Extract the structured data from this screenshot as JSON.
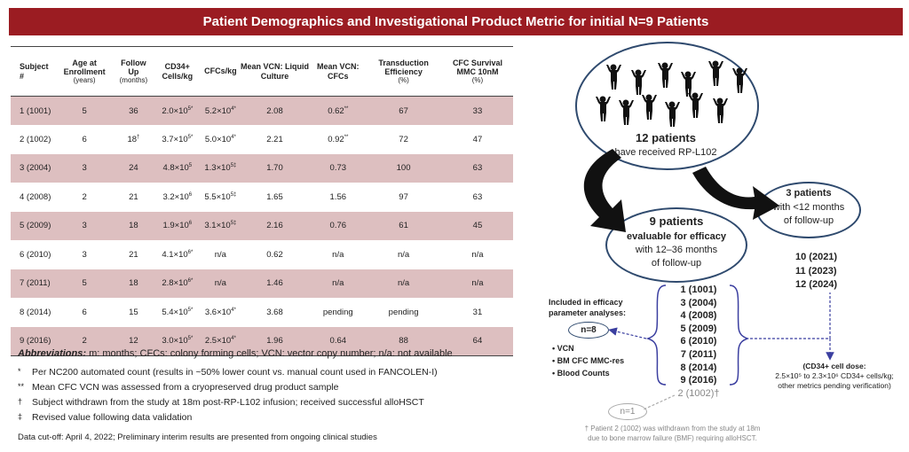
{
  "title": "Patient Demographics and Investigational Product Metric for initial N=9 Patients",
  "table": {
    "headers": [
      {
        "main": "Subject #",
        "sub": ""
      },
      {
        "main": "Age at Enrollment",
        "sub": "(years)"
      },
      {
        "main": "Follow Up",
        "sub": "(months)"
      },
      {
        "main": "CD34+ Cells/kg",
        "sub": ""
      },
      {
        "main": "CFCs/kg",
        "sub": ""
      },
      {
        "main": "Mean VCN: Liquid Culture",
        "sub": ""
      },
      {
        "main": "Mean VCN: CFCs",
        "sub": ""
      },
      {
        "main": "Transduction Efficiency",
        "sub": "(%)"
      },
      {
        "main": "CFC Survival MMC 10nM",
        "sub": "(%)"
      }
    ],
    "rows": [
      {
        "subject": "1 (1001)",
        "age": "5",
        "follow": "36",
        "follow_mark": "",
        "cd34_base": "2.0×10",
        "cd34_exp": "5*",
        "cfc_base": "5.2×10",
        "cfc_exp": "4*",
        "vcn_lc": "2.08",
        "vcn_cfc": "0.62",
        "vcn_cfc_mark": "**",
        "te": "67",
        "survival": "33"
      },
      {
        "subject": "2 (1002)",
        "age": "6",
        "follow": "18",
        "follow_mark": "†",
        "cd34_base": "3.7×10",
        "cd34_exp": "5*",
        "cfc_base": "5.0×10",
        "cfc_exp": "4*",
        "vcn_lc": "2.21",
        "vcn_cfc": "0.92",
        "vcn_cfc_mark": "**",
        "te": "72",
        "survival": "47"
      },
      {
        "subject": "3 (2004)",
        "age": "3",
        "follow": "24",
        "follow_mark": "",
        "cd34_base": "4.8×10",
        "cd34_exp": "5",
        "cfc_base": "1.3×10",
        "cfc_exp": "5‡",
        "vcn_lc": "1.70",
        "vcn_cfc": "0.73",
        "vcn_cfc_mark": "",
        "te": "100",
        "survival": "63"
      },
      {
        "subject": "4 (2008)",
        "age": "2",
        "follow": "21",
        "follow_mark": "",
        "cd34_base": "3.2×10",
        "cd34_exp": "6",
        "cfc_base": "5.5×10",
        "cfc_exp": "5‡",
        "vcn_lc": "1.65",
        "vcn_cfc": "1.56",
        "vcn_cfc_mark": "",
        "te": "97",
        "survival": "63"
      },
      {
        "subject": "5 (2009)",
        "age": "3",
        "follow": "18",
        "follow_mark": "",
        "cd34_base": "1.9×10",
        "cd34_exp": "6",
        "cfc_base": "3.1×10",
        "cfc_exp": "5‡",
        "vcn_lc": "2.16",
        "vcn_cfc": "0.76",
        "vcn_cfc_mark": "",
        "te": "61",
        "survival": "45"
      },
      {
        "subject": "6 (2010)",
        "age": "3",
        "follow": "21",
        "follow_mark": "",
        "cd34_base": "4.1×10",
        "cd34_exp": "6*",
        "cfc_base": "n/a",
        "cfc_exp": "",
        "vcn_lc": "0.62",
        "vcn_cfc": "n/a",
        "vcn_cfc_mark": "",
        "te": "n/a",
        "survival": "n/a"
      },
      {
        "subject": "7 (2011)",
        "age": "5",
        "follow": "18",
        "follow_mark": "",
        "cd34_base": "2.8×10",
        "cd34_exp": "6*",
        "cfc_base": "n/a",
        "cfc_exp": "",
        "vcn_lc": "1.46",
        "vcn_cfc": "n/a",
        "vcn_cfc_mark": "",
        "te": "n/a",
        "survival": "n/a"
      },
      {
        "subject": "8 (2014)",
        "age": "6",
        "follow": "15",
        "follow_mark": "",
        "cd34_base": "5.4×10",
        "cd34_exp": "5*",
        "cfc_base": "3.6×10",
        "cfc_exp": "4*",
        "vcn_lc": "3.68",
        "vcn_cfc": "pending",
        "vcn_cfc_mark": "",
        "te": "pending",
        "survival": "31"
      },
      {
        "subject": "9 (2016)",
        "age": "2",
        "follow": "12",
        "follow_mark": "",
        "cd34_base": "3.0×10",
        "cd34_exp": "5*",
        "cfc_base": "2.5×10",
        "cfc_exp": "4*",
        "vcn_lc": "1.96",
        "vcn_cfc": "0.64",
        "vcn_cfc_mark": "",
        "te": "88",
        "survival": "64"
      }
    ]
  },
  "abbreviations": {
    "label": "Abbreviations:",
    "text": " m: months; CFCs: colony forming cells; VCN: vector copy number; n/a: not available"
  },
  "footnotes": [
    {
      "mark": "*",
      "text": "Per NC200 automated count (results in ~50% lower count vs. manual count used in FANCOLEN-I)"
    },
    {
      "mark": "**",
      "text": "Mean CFC VCN was assessed from a cryopreserved drug product sample"
    },
    {
      "mark": "†",
      "text": "Subject withdrawn from the study at 18m post-RP-L102 infusion; received successful alloHSCT"
    },
    {
      "mark": "‡",
      "text": "Revised value following data validation"
    }
  ],
  "cutoff": "Data cut-off: April 4, 2022;  Preliminary interim results are presented from ongoing clinical studies",
  "flow": {
    "top_count": "12 patients",
    "top_sub": "have received RP-L102",
    "mid_count": "9 patients",
    "mid_bold": "evaluable for efficacy",
    "mid_sub1": "with 12–36 months",
    "mid_sub2": "of follow-up",
    "right_count": "3 patients",
    "right_sub1": "with <12 months",
    "right_sub2": "of follow-up",
    "params_line1": "Included in efficacy",
    "params_line2": "parameter analyses:",
    "n8": "n=8",
    "n1": "n=1",
    "bullets": [
      "VCN",
      "BM CFC MMC-res",
      "Blood Counts"
    ],
    "ids": [
      "1 (1001)",
      "3 (2004)",
      "4 (2008)",
      "5 (2009)",
      "6 (2010)",
      "7 (2011)",
      "8 (2014)",
      "9 (2016)"
    ],
    "withdrawn_id": "2 (1002)†",
    "right_ids": [
      "10 (2021)",
      "11 (2023)",
      "12 (2024)"
    ],
    "dose_line1": "(CD34+ cell dose:",
    "dose_line2": "2.5×10⁵ to 2.3×10⁶ CD34+ cells/kg;",
    "dose_line3": "other metrics pending verification)",
    "withdraw_note1": "† Patient 2 (1002) was withdrawn from the study at 18m",
    "withdraw_note2": "due to bone marrow failure (BMF) requiring alloHSCT."
  },
  "colors": {
    "title_bg": "#9b1c22",
    "row_shade": "#ddbfc0",
    "ellipse": "#2f4a6e",
    "dash": "#3b3fa0"
  },
  "icons": [
    "person-icon"
  ]
}
